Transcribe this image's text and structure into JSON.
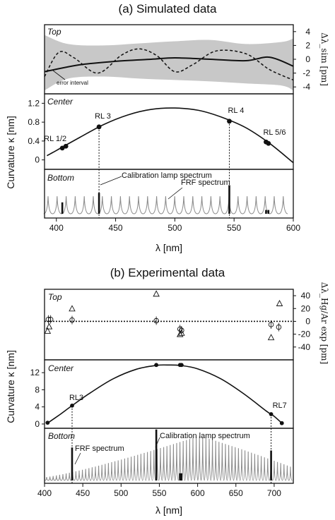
{
  "chart_data": [
    {
      "type": "line",
      "title": "(a) Simulated data",
      "xlabel": "λ [nm]",
      "ylabel": "Curvature κ [nm]",
      "xlim": [
        390,
        600
      ],
      "x_ticks": [
        "400",
        "450",
        "500",
        "550",
        "600"
      ],
      "panels": [
        {
          "name": "Top",
          "ylabel": "Δλ_sim [pm]",
          "ylim": [
            -5,
            5
          ],
          "y_ticks": [
            "-4",
            "-2",
            "0",
            "2",
            "4"
          ],
          "annotations": [
            "error interval"
          ],
          "band": {
            "x": [
              390,
              410,
              440,
              470,
              500,
              530,
              560,
              590,
              600
            ],
            "upper": [
              3.5,
              2.2,
              2.0,
              2.3,
              2.6,
              2.8,
              2.2,
              2.5,
              3.0
            ],
            "lower": [
              -4.5,
              -2.8,
              -2.5,
              -2.8,
              -3.0,
              -3.2,
              -3.5,
              -3.8,
              -4.5
            ]
          },
          "series": [
            {
              "style": "solid",
              "x": [
                390,
                420,
                450,
                480,
                500,
                530,
                560,
                580,
                600
              ],
              "y": [
                -1.8,
                -0.8,
                -0.3,
                0.0,
                0.2,
                0.0,
                -0.2,
                0.3,
                -1.0
              ]
            },
            {
              "style": "dashed",
              "x": [
                390,
                402,
                415,
                435,
                455,
                470,
                485,
                500,
                515,
                535,
                560,
                580,
                600
              ],
              "y": [
                -2.5,
                1.0,
                0.2,
                -2.0,
                0.6,
                1.5,
                0.5,
                -1.8,
                -0.8,
                1.2,
                0.8,
                -1.5,
                -3.0
              ]
            }
          ]
        },
        {
          "name": "Center",
          "ylim": [
            -0.2,
            1.4
          ],
          "y_ticks": [
            "0",
            "0.4",
            "0.8",
            "1.2"
          ],
          "curve": {
            "x": [
              392,
              395,
              400,
              420,
              440,
              460,
              480,
              500,
              520,
              540,
              560,
              580,
              600
            ],
            "y": [
              0.09,
              0.13,
              0.2,
              0.48,
              0.75,
              0.95,
              1.07,
              1.1,
              1.05,
              0.9,
              0.68,
              0.35,
              -0.06
            ]
          },
          "points": [
            {
              "label": "RL 1/2",
              "x": [
                405,
                408
              ],
              "y": [
                0.25,
                0.29
              ]
            },
            {
              "label": "RL 3",
              "x": [
                436
              ],
              "y": [
                0.7
              ]
            },
            {
              "label": "RL 4",
              "x": [
                546
              ],
              "y": [
                0.82
              ]
            },
            {
              "label": "RL 5/6",
              "x": [
                577,
                579
              ],
              "y": [
                0.38,
                0.35
              ]
            }
          ]
        },
        {
          "name": "Bottom",
          "annotations": [
            "Calibration lamp spectrum",
            "FRF spectrum"
          ],
          "lamp_lines": [
            {
              "x": 405,
              "h": 0.3
            },
            {
              "x": 436,
              "h": 0.55
            },
            {
              "x": 546,
              "h": 0.75
            },
            {
              "x": 577,
              "h": 0.1
            },
            {
              "x": 579,
              "h": 0.1
            }
          ]
        }
      ]
    },
    {
      "type": "line",
      "title": "(b) Experimental data",
      "xlabel": "λ [nm]",
      "ylabel": "Curvature κ [nm]",
      "xlim": [
        400,
        725
      ],
      "x_ticks": [
        "400",
        "450",
        "500",
        "550",
        "600",
        "650",
        "700"
      ],
      "panels": [
        {
          "name": "Top",
          "ylabel": "Δλ_Hg/Ar exp [pm]",
          "ylim": [
            -60,
            50
          ],
          "y_ticks": [
            "-40",
            "-20",
            "0",
            "20",
            "40"
          ],
          "triangles": [
            {
              "x": 404,
              "y": -15
            },
            {
              "x": 406,
              "y": -8
            },
            {
              "x": 436,
              "y": 20
            },
            {
              "x": 546,
              "y": 43
            },
            {
              "x": 577,
              "y": -20
            },
            {
              "x": 579,
              "y": -18
            },
            {
              "x": 696,
              "y": -25
            },
            {
              "x": 707,
              "y": 28
            }
          ],
          "circles": [
            {
              "x": 405,
              "y": 3
            },
            {
              "x": 408,
              "y": 3
            },
            {
              "x": 436,
              "y": 2
            },
            {
              "x": 546,
              "y": 1
            },
            {
              "x": 577,
              "y": -12
            },
            {
              "x": 579,
              "y": -14
            },
            {
              "x": 696,
              "y": -5
            },
            {
              "x": 706,
              "y": -9
            }
          ]
        },
        {
          "name": "Center",
          "ylim": [
            -1,
            15
          ],
          "y_ticks": [
            "0",
            "4",
            "8",
            "12"
          ],
          "curve": {
            "x": [
              404,
              420,
              436,
              460,
              490,
              520,
              546,
              560,
              577,
              600,
              630,
              660,
              690,
              700,
              710
            ],
            "y": [
              0.2,
              2.2,
              4.3,
              7.3,
              10.6,
              12.8,
              13.7,
              13.8,
              13.7,
              12.9,
              10.6,
              7.1,
              3.0,
              1.8,
              0.2
            ]
          },
          "points": [
            {
              "label": "RL3",
              "x": [
                436
              ],
              "y": [
                4.3
              ]
            },
            {
              "label": "RL7",
              "x": [
                696
              ],
              "y": [
                2.3
              ]
            },
            {
              "label": "",
              "x": [
                404,
                546,
                577,
                579,
                710
              ],
              "y": [
                0.3,
                13.8,
                13.8,
                13.8,
                0.2
              ]
            }
          ]
        },
        {
          "name": "Bottom",
          "annotations": [
            "FRF spectrum",
            "Calibration lamp spectrum"
          ],
          "lamp_lines": [
            {
              "x": 436,
              "h": 0.55
            },
            {
              "x": 546,
              "h": 0.85
            },
            {
              "x": 577,
              "h": 0.12
            },
            {
              "x": 579,
              "h": 0.12
            },
            {
              "x": 696,
              "h": 0.5
            }
          ]
        }
      ]
    }
  ]
}
